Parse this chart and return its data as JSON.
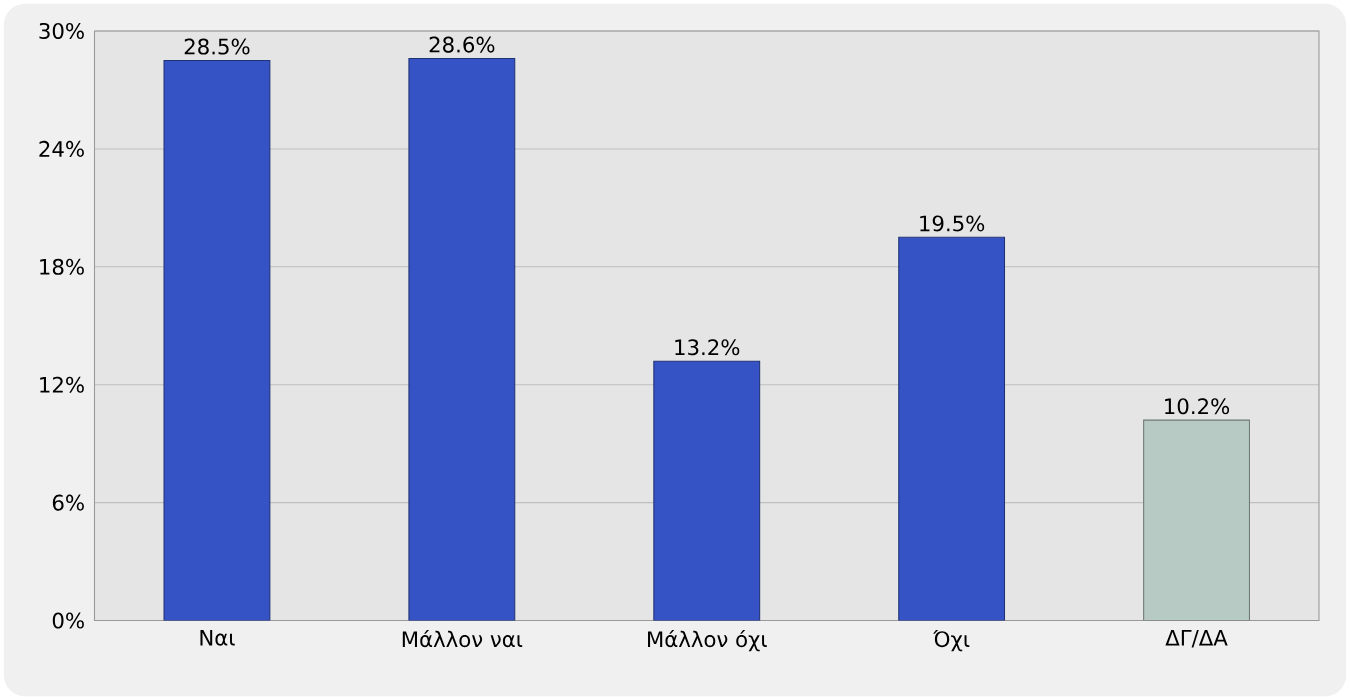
{
  "chart_data": {
    "type": "bar",
    "categories": [
      "Ναι",
      "Μάλλον ναι",
      "Μάλλον όχι",
      "Όχι",
      "ΔΓ/ΔΑ"
    ],
    "values": [
      28.5,
      28.6,
      13.2,
      19.5,
      10.2
    ],
    "colors": [
      "#3553c4",
      "#3553c4",
      "#3553c4",
      "#3553c4",
      "#b8cac4"
    ],
    "value_labels": [
      "28.5%",
      "28.6%",
      "13.2%",
      "19.5%",
      "10.2%"
    ],
    "ylim": [
      0,
      30
    ],
    "yticks": [
      {
        "value": 0,
        "label": "0%"
      },
      {
        "value": 6,
        "label": "6%"
      },
      {
        "value": 12,
        "label": "12%"
      },
      {
        "value": 18,
        "label": "18%"
      },
      {
        "value": 24,
        "label": "24%"
      },
      {
        "value": 30,
        "label": "30%"
      }
    ],
    "grid": "y"
  }
}
